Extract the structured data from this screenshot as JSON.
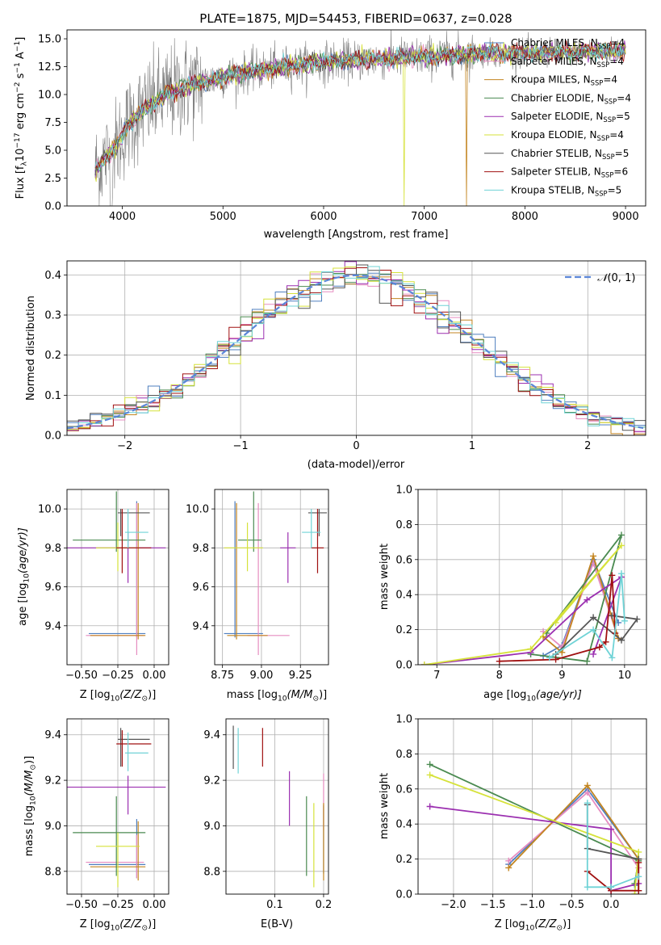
{
  "colors": {
    "chabrier_miles": "#4f7fbf",
    "salpeter_miles": "#e68cc0",
    "kroupa_miles": "#c38520",
    "chabrier_elodie": "#4a8a50",
    "salpeter_elodie": "#9b2fb0",
    "kroupa_elodie": "#d6e23a",
    "chabrier_stelib": "#555555",
    "salpeter_stelib": "#a01010",
    "kroupa_stelib": "#6fd3d6",
    "normal_curve": "#5b86d8",
    "data_spectrum": "#808080",
    "grid": "#b0b0b0"
  },
  "chart_data": [
    {
      "id": "spectrum",
      "type": "line",
      "title": "PLATE=1875, MJD=54453, FIBERID=0637, z=0.028",
      "xlabel": "wavelength [Angstrom, rest frame]",
      "ylabel_parts": [
        "Flux [f",
        "λ",
        "10",
        "−17",
        " erg cm",
        "−2",
        " s",
        "−1",
        " A",
        "−1",
        "]"
      ],
      "xlim": [
        3450,
        9200
      ],
      "ylim": [
        0,
        15.8
      ],
      "xticks": [
        "4000",
        "5000",
        "6000",
        "7000",
        "8000",
        "9000"
      ],
      "yticks": [
        "0.0",
        "2.5",
        "5.0",
        "7.5",
        "10.0",
        "12.5",
        "15.0"
      ],
      "grid": false,
      "legend_position": "right",
      "legend": [
        {
          "label": "Chabrier MILES, N",
          "sub": "SSP",
          "n": "=4",
          "color_key": "chabrier_miles"
        },
        {
          "label": "Salpeter MILES, N",
          "sub": "SSP",
          "n": "=4",
          "color_key": "salpeter_miles"
        },
        {
          "label": "Kroupa MILES, N",
          "sub": "SSP",
          "n": "=4",
          "color_key": "kroupa_miles"
        },
        {
          "label": "Chabrier ELODIE, N",
          "sub": "SSP",
          "n": "=4",
          "color_key": "chabrier_elodie"
        },
        {
          "label": "Salpeter ELODIE, N",
          "sub": "SSP",
          "n": "=5",
          "color_key": "salpeter_elodie"
        },
        {
          "label": "Kroupa ELODIE, N",
          "sub": "SSP",
          "n": "=4",
          "color_key": "kroupa_elodie"
        },
        {
          "label": "Chabrier STELIB, N",
          "sub": "SSP",
          "n": "=5",
          "color_key": "chabrier_stelib"
        },
        {
          "label": "Salpeter STELIB, N",
          "sub": "SSP",
          "n": "=6",
          "color_key": "salpeter_stelib"
        },
        {
          "label": "Kroupa STELIB, N",
          "sub": "SSP",
          "n": "=5",
          "color_key": "kroupa_stelib"
        }
      ],
      "continuum": {
        "x": [
          3730,
          3850,
          3950,
          4050,
          4200,
          4400,
          4600,
          4800,
          5000,
          5300,
          5600,
          6000,
          6400,
          6800,
          7200,
          7600,
          8000,
          8400,
          8800,
          9000
        ],
        "y": [
          3.2,
          4.5,
          5.5,
          7.2,
          8.6,
          9.8,
          10.6,
          11.1,
          11.6,
          12.1,
          12.5,
          12.9,
          13.1,
          13.3,
          13.5,
          13.7,
          13.7,
          13.8,
          13.9,
          14.0
        ]
      }
    },
    {
      "id": "residuals",
      "type": "histogram",
      "xlabel": "(data-model)/error",
      "ylabel": "Normed distribution",
      "xlim": [
        -2.5,
        2.5
      ],
      "ylim": [
        0,
        0.435
      ],
      "xticks": [
        "−2",
        "−1",
        "0",
        "1",
        "2"
      ],
      "yticks": [
        "0.0",
        "0.1",
        "0.2",
        "0.3",
        "0.4"
      ],
      "grid": true,
      "legend_position": "top-right",
      "curve_label_parts": [
        "𝒩",
        "(0, 1)"
      ],
      "bin_width": 0.1
    },
    {
      "id": "z-age",
      "type": "errorbar",
      "xlabel_parts": [
        "Z [log",
        "10",
        "(Z/Z",
        "⊙",
        ")]"
      ],
      "ylabel_parts": [
        "age  [log",
        "10",
        "(age/yr)]"
      ],
      "xlim": [
        -0.6,
        0.1
      ],
      "ylim": [
        9.2,
        10.1
      ],
      "xticks": [
        "−0.50",
        "−0.25",
        "0.00"
      ],
      "yticks": [
        "9.4",
        "9.6",
        "9.8",
        "10.0"
      ],
      "grid": true,
      "points": [
        {
          "color_key": "chabrier_miles",
          "x": -0.12,
          "xerr": [
            0.33,
            0.06
          ],
          "y": 9.36,
          "yerr": [
            0.02,
            0.68
          ]
        },
        {
          "color_key": "salpeter_miles",
          "x": -0.12,
          "xerr": [
            0.35,
            0.05
          ],
          "y": 9.35,
          "yerr": [
            0.1,
            0.68
          ]
        },
        {
          "color_key": "kroupa_miles",
          "x": -0.11,
          "xerr": [
            0.33,
            0.05
          ],
          "y": 9.35,
          "yerr": [
            0.02,
            0.68
          ]
        },
        {
          "color_key": "chabrier_elodie",
          "x": -0.26,
          "xerr": [
            0.3,
            0.2
          ],
          "y": 9.84,
          "yerr": [
            0.06,
            0.25
          ]
        },
        {
          "color_key": "salpeter_elodie",
          "x": -0.18,
          "xerr": [
            0.42,
            0.26
          ],
          "y": 9.8,
          "yerr": [
            0.18,
            0.08
          ]
        },
        {
          "color_key": "kroupa_elodie",
          "x": -0.25,
          "xerr": [
            0.15,
            0.15
          ],
          "y": 9.8,
          "yerr": [
            0.12,
            0.13
          ]
        },
        {
          "color_key": "chabrier_stelib",
          "x": -0.23,
          "xerr": [
            0.02,
            0.2
          ],
          "y": 9.98,
          "yerr": [
            0.12,
            0.02
          ]
        },
        {
          "color_key": "salpeter_stelib",
          "x": -0.22,
          "xerr": [
            0.04,
            0.2
          ],
          "y": 9.8,
          "yerr": [
            0.13,
            0.2
          ]
        },
        {
          "color_key": "kroupa_stelib",
          "x": -0.18,
          "xerr": [
            0.02,
            0.14
          ],
          "y": 9.88,
          "yerr": [
            0.08,
            0.12
          ]
        }
      ]
    },
    {
      "id": "mass-age",
      "type": "errorbar",
      "xlabel_parts": [
        "mass [log",
        "10",
        "(M/M",
        "⊙",
        ")]"
      ],
      "ylabel_parts": [],
      "xlim": [
        8.7,
        9.43
      ],
      "ylim": [
        9.2,
        10.1
      ],
      "xticks": [
        "8.75",
        "9.00",
        "9.25"
      ],
      "yticks": [
        "9.4",
        "9.6",
        "9.8",
        "10.0"
      ],
      "grid": true,
      "points": [
        {
          "color_key": "chabrier_miles",
          "x": 8.83,
          "xerr": [
            0.07,
            0.18
          ],
          "y": 9.36,
          "yerr": [
            0.02,
            0.68
          ]
        },
        {
          "color_key": "salpeter_miles",
          "x": 8.98,
          "xerr": [
            0.07,
            0.2
          ],
          "y": 9.35,
          "yerr": [
            0.1,
            0.68
          ]
        },
        {
          "color_key": "kroupa_miles",
          "x": 8.84,
          "xerr": [
            0.06,
            0.2
          ],
          "y": 9.35,
          "yerr": [
            0.02,
            0.68
          ]
        },
        {
          "color_key": "chabrier_elodie",
          "x": 8.95,
          "xerr": [
            0.1,
            0.05
          ],
          "y": 9.84,
          "yerr": [
            0.06,
            0.25
          ]
        },
        {
          "color_key": "salpeter_elodie",
          "x": 9.17,
          "xerr": [
            0.05,
            0.05
          ],
          "y": 9.8,
          "yerr": [
            0.18,
            0.08
          ]
        },
        {
          "color_key": "kroupa_elodie",
          "x": 8.91,
          "xerr": [
            0.15,
            0.1
          ],
          "y": 9.8,
          "yerr": [
            0.12,
            0.13
          ]
        },
        {
          "color_key": "chabrier_stelib",
          "x": 9.37,
          "xerr": [
            0.07,
            0.05
          ],
          "y": 9.98,
          "yerr": [
            0.12,
            0.02
          ]
        },
        {
          "color_key": "salpeter_stelib",
          "x": 9.36,
          "xerr": [
            0.04,
            0.04
          ],
          "y": 9.8,
          "yerr": [
            0.13,
            0.2
          ]
        },
        {
          "color_key": "kroupa_stelib",
          "x": 9.32,
          "xerr": [
            0.06,
            0.06
          ],
          "y": 9.88,
          "yerr": [
            0.08,
            0.12
          ]
        }
      ]
    },
    {
      "id": "age-weight",
      "type": "line",
      "xlabel_parts": [
        "age  [log",
        "10",
        "(age/yr)]"
      ],
      "ylabel": "mass weight",
      "xlim": [
        6.7,
        10.35
      ],
      "ylim": [
        0,
        1.0
      ],
      "xticks": [
        "7",
        "8",
        "9",
        "10"
      ],
      "yticks": [
        "0.0",
        "0.2",
        "0.4",
        "0.6",
        "0.8",
        "1.0"
      ],
      "grid": true,
      "series": [
        {
          "color_key": "chabrier_miles",
          "x": [
            8.7,
            9.0,
            9.5,
            9.9
          ],
          "y": [
            0.05,
            0.11,
            0.6,
            0.24
          ]
        },
        {
          "color_key": "salpeter_miles",
          "x": [
            8.7,
            9.0,
            9.5,
            9.9
          ],
          "y": [
            0.19,
            0.1,
            0.58,
            0.15
          ]
        },
        {
          "color_key": "kroupa_miles",
          "x": [
            8.7,
            9.0,
            9.5,
            9.9
          ],
          "y": [
            0.16,
            0.07,
            0.62,
            0.15
          ]
        },
        {
          "color_key": "chabrier_elodie",
          "x": [
            8.5,
            9.4,
            9.95,
            8.75
          ],
          "y": [
            0.06,
            0.02,
            0.74,
            0.18
          ]
        },
        {
          "color_key": "salpeter_elodie",
          "x": [
            6.8,
            8.5,
            9.4,
            9.95,
            9.5
          ],
          "y": [
            0.0,
            0.07,
            0.37,
            0.5,
            0.06
          ]
        },
        {
          "color_key": "kroupa_elodie",
          "x": [
            6.8,
            8.5,
            9.95,
            8.9
          ],
          "y": [
            0.0,
            0.09,
            0.68,
            0.24
          ]
        },
        {
          "color_key": "chabrier_stelib",
          "x": [
            8.9,
            9.5,
            9.95,
            10.2,
            9.8
          ],
          "y": [
            0.06,
            0.27,
            0.14,
            0.26,
            0.28
          ]
        },
        {
          "color_key": "salpeter_stelib",
          "x": [
            8.0,
            8.9,
            9.6,
            9.7,
            9.8,
            9.85
          ],
          "y": [
            0.02,
            0.03,
            0.1,
            0.13,
            0.51,
            0.18
          ]
        },
        {
          "color_key": "kroupa_stelib",
          "x": [
            8.8,
            9.5,
            9.8,
            9.95,
            10.0
          ],
          "y": [
            0.04,
            0.2,
            0.04,
            0.52,
            0.25
          ]
        }
      ]
    },
    {
      "id": "z-mass",
      "type": "errorbar",
      "xlabel_parts": [
        "Z [log",
        "10",
        "(Z/Z",
        "⊙",
        ")]"
      ],
      "ylabel_parts": [
        "mass [log",
        "10",
        "(M/M",
        "⊙",
        ")]"
      ],
      "xlim": [
        -0.6,
        0.1
      ],
      "ylim": [
        8.7,
        9.47
      ],
      "xticks": [
        "−0.50",
        "−0.25",
        "0.00"
      ],
      "yticks": [
        "8.8",
        "9.0",
        "9.2",
        "9.4"
      ],
      "grid": true,
      "points": [
        {
          "color_key": "chabrier_miles",
          "x": -0.12,
          "xerr": [
            0.33,
            0.06
          ],
          "y": 8.83,
          "yerr": [
            0.06,
            0.2
          ]
        },
        {
          "color_key": "salpeter_miles",
          "x": -0.12,
          "xerr": [
            0.35,
            0.05
          ],
          "y": 8.84,
          "yerr": [
            0.07,
            0.12
          ]
        },
        {
          "color_key": "kroupa_miles",
          "x": -0.11,
          "xerr": [
            0.33,
            0.05
          ],
          "y": 8.82,
          "yerr": [
            0.06,
            0.2
          ]
        },
        {
          "color_key": "chabrier_elodie",
          "x": -0.26,
          "xerr": [
            0.3,
            0.2
          ],
          "y": 8.97,
          "yerr": [
            0.19,
            0.16
          ]
        },
        {
          "color_key": "salpeter_elodie",
          "x": -0.18,
          "xerr": [
            0.42,
            0.26
          ],
          "y": 9.17,
          "yerr": [
            0.12,
            0.05
          ]
        },
        {
          "color_key": "kroupa_elodie",
          "x": -0.25,
          "xerr": [
            0.15,
            0.15
          ],
          "y": 8.91,
          "yerr": [
            0.18,
            0.06
          ]
        },
        {
          "color_key": "chabrier_stelib",
          "x": -0.23,
          "xerr": [
            0.02,
            0.2
          ],
          "y": 9.38,
          "yerr": [
            0.12,
            0.05
          ]
        },
        {
          "color_key": "salpeter_stelib",
          "x": -0.22,
          "xerr": [
            0.04,
            0.2
          ],
          "y": 9.36,
          "yerr": [
            0.1,
            0.06
          ]
        },
        {
          "color_key": "kroupa_stelib",
          "x": -0.18,
          "xerr": [
            0.02,
            0.14
          ],
          "y": 9.32,
          "yerr": [
            0.08,
            0.09
          ]
        }
      ]
    },
    {
      "id": "ebv-mass",
      "type": "errorbar",
      "xlabel": "E(B-V)",
      "xlim": [
        0.0,
        0.21
      ],
      "ylim": [
        8.7,
        9.47
      ],
      "xticks": [
        "0.1",
        "0.2"
      ],
      "yticks": [
        "8.8",
        "9.0",
        "9.2",
        "9.4"
      ],
      "grid": true,
      "points": [
        {
          "color_key": "chabrier_miles",
          "x": 0.2,
          "y": 8.99,
          "yerr": [
            0.2,
            0.1
          ]
        },
        {
          "color_key": "salpeter_miles",
          "x": 0.2,
          "y": 9.08,
          "yerr": [
            0.1,
            0.15
          ]
        },
        {
          "color_key": "kroupa_miles",
          "x": 0.2,
          "y": 8.88,
          "yerr": [
            0.12,
            0.22
          ]
        },
        {
          "color_key": "chabrier_elodie",
          "x": 0.165,
          "y": 8.96,
          "yerr": [
            0.18,
            0.17
          ]
        },
        {
          "color_key": "salpeter_elodie",
          "x": 0.13,
          "y": 9.12,
          "yerr": [
            0.12,
            0.12
          ]
        },
        {
          "color_key": "kroupa_elodie",
          "x": 0.18,
          "y": 8.95,
          "yerr": [
            0.22,
            0.15
          ]
        },
        {
          "color_key": "chabrier_stelib",
          "x": 0.015,
          "y": 9.35,
          "yerr": [
            0.1,
            0.09
          ]
        },
        {
          "color_key": "salpeter_stelib",
          "x": 0.075,
          "y": 9.34,
          "yerr": [
            0.08,
            0.09
          ]
        },
        {
          "color_key": "kroupa_stelib",
          "x": 0.025,
          "y": 9.33,
          "yerr": [
            0.1,
            0.1
          ]
        }
      ]
    },
    {
      "id": "z-weight",
      "type": "line",
      "xlabel_parts": [
        "Z [log",
        "10",
        "(Z/Z",
        "⊙",
        ")]"
      ],
      "ylabel": "mass weight",
      "xlim": [
        -2.45,
        0.45
      ],
      "ylim": [
        0,
        1.0
      ],
      "xticks": [
        "−2.0",
        "−1.5",
        "−1.0",
        "−0.5",
        "0.0"
      ],
      "yticks": [
        "0.0",
        "0.2",
        "0.4",
        "0.6",
        "0.8",
        "1.0"
      ],
      "grid": true,
      "series": [
        {
          "color_key": "chabrier_miles",
          "x": [
            -1.3,
            -0.3,
            0.35,
            0.3
          ],
          "y": [
            0.17,
            0.6,
            0.2,
            0.05
          ]
        },
        {
          "color_key": "salpeter_miles",
          "x": [
            -1.3,
            -0.3,
            0.35
          ],
          "y": [
            0.19,
            0.58,
            0.15
          ]
        },
        {
          "color_key": "kroupa_miles",
          "x": [
            -1.3,
            -0.3,
            0.35
          ],
          "y": [
            0.15,
            0.62,
            0.2
          ]
        },
        {
          "color_key": "chabrier_elodie",
          "x": [
            -2.3,
            0.35,
            0.3
          ],
          "y": [
            0.74,
            0.19,
            0.06
          ]
        },
        {
          "color_key": "salpeter_elodie",
          "x": [
            -2.3,
            0.0,
            0.0,
            0.35
          ],
          "y": [
            0.5,
            0.37,
            0.02,
            0.06
          ]
        },
        {
          "color_key": "kroupa_elodie",
          "x": [
            -2.3,
            0.35,
            0.3
          ],
          "y": [
            0.68,
            0.24,
            0.0
          ]
        },
        {
          "color_key": "chabrier_stelib",
          "x": [
            -0.3,
            -0.3,
            0.35,
            0.35
          ],
          "y": [
            0.51,
            0.26,
            0.2,
            0.02
          ]
        },
        {
          "color_key": "salpeter_stelib",
          "x": [
            -0.3,
            0.0,
            0.35,
            0.35
          ],
          "y": [
            0.13,
            0.02,
            0.02,
            0.18
          ]
        },
        {
          "color_key": "kroupa_stelib",
          "x": [
            -0.3,
            -0.3,
            0.0,
            0.35
          ],
          "y": [
            0.52,
            0.04,
            0.04,
            0.1
          ]
        }
      ]
    }
  ]
}
